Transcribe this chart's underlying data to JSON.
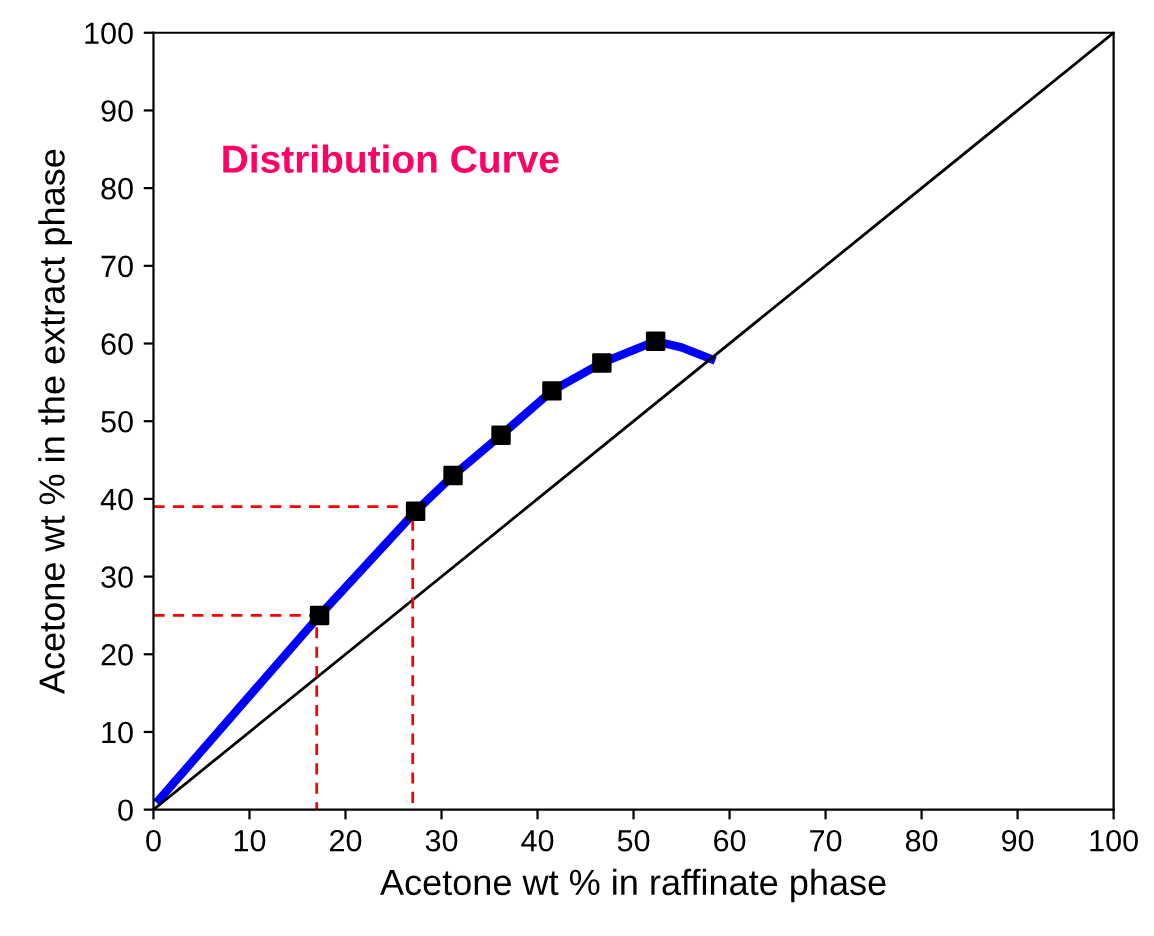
{
  "chart_data": {
    "type": "line",
    "xlabel": "Acetone wt % in raffinate phase",
    "ylabel": "Acetone wt % in the extract phase",
    "annotations": [
      "Distribution Curve"
    ],
    "xlim": [
      0,
      100
    ],
    "ylim": [
      0,
      100
    ],
    "xticks": [
      0,
      10,
      20,
      30,
      40,
      50,
      60,
      70,
      80,
      90,
      100
    ],
    "yticks": [
      0,
      10,
      20,
      30,
      40,
      50,
      60,
      70,
      80,
      90,
      100
    ],
    "grid": false,
    "legend": false,
    "series": [
      {
        "color": "#0000ff",
        "x": [
          0.6,
          17.3,
          27.3,
          31.2,
          36.2,
          41.5,
          46.7,
          52.3,
          55.0,
          58.1
        ],
        "values": [
          1.3,
          25.0,
          38.4,
          43.0,
          48.2,
          53.9,
          57.5,
          60.3,
          59.5,
          58.0
        ],
        "marker": "none",
        "line_style": "solid"
      },
      {
        "type": "scatter",
        "color": "#000000",
        "x": [
          17.3,
          27.3,
          31.2,
          36.2,
          41.5,
          46.7,
          52.3
        ],
        "values": [
          25.0,
          38.4,
          43.0,
          48.2,
          53.9,
          57.5,
          60.3
        ],
        "marker": "square"
      },
      {
        "color": "#000000",
        "x": [
          0,
          100
        ],
        "values": [
          0,
          100
        ],
        "marker": "none",
        "line_style": "solid"
      },
      {
        "color": "#ff0000",
        "x": [
          0,
          17,
          17
        ],
        "values": [
          25,
          25,
          0
        ],
        "marker": "none",
        "line_style": "dashed"
      },
      {
        "color": "#ff0000",
        "x": [
          0,
          27,
          27
        ],
        "values": [
          39,
          39,
          0
        ],
        "marker": "none",
        "line_style": "dashed"
      }
    ]
  }
}
